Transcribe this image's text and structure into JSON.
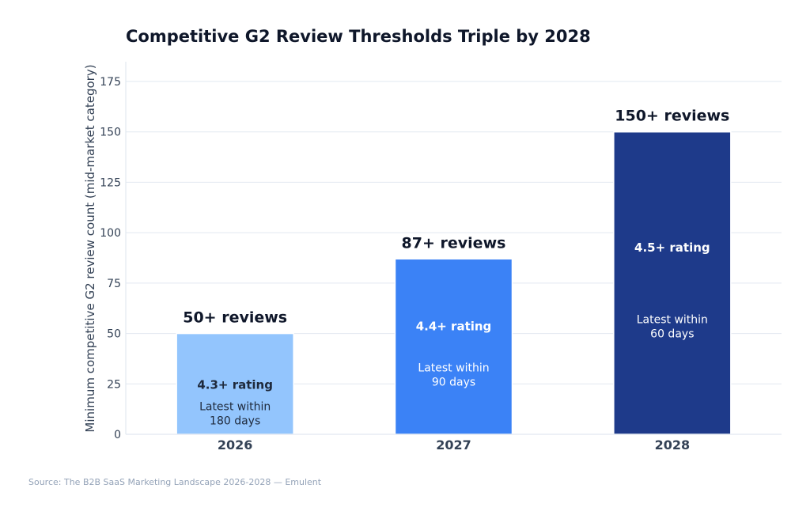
{
  "chart_data": {
    "type": "bar",
    "title": "Competitive G2 Review Thresholds Triple by 2028",
    "xlabel": "",
    "ylabel": "Minimum competitive G2 review count (mid-market category)",
    "ylim": [
      0,
      175
    ],
    "yticks": [
      0,
      25,
      50,
      75,
      100,
      125,
      150,
      175
    ],
    "grid": true,
    "categories": [
      "2026",
      "2027",
      "2028"
    ],
    "values": [
      50,
      87,
      150
    ],
    "colors": [
      "#93c5fd",
      "#3b82f6",
      "#1e3a8a"
    ],
    "top_labels": [
      "50+ reviews",
      "87+ reviews",
      "150+ reviews"
    ],
    "rating_labels": [
      "4.3+ rating",
      "4.4+ rating",
      "4.5+ rating"
    ],
    "recency_labels": [
      [
        "Latest within",
        "180 days"
      ],
      [
        "Latest within",
        "90 days"
      ],
      [
        "Latest within",
        "60 days"
      ]
    ],
    "inner_text_colors": [
      "#1e293b",
      "#ffffff",
      "#ffffff"
    ]
  },
  "source": "Source: The B2B SaaS Marketing Landscape 2026-2028 — Emulent"
}
